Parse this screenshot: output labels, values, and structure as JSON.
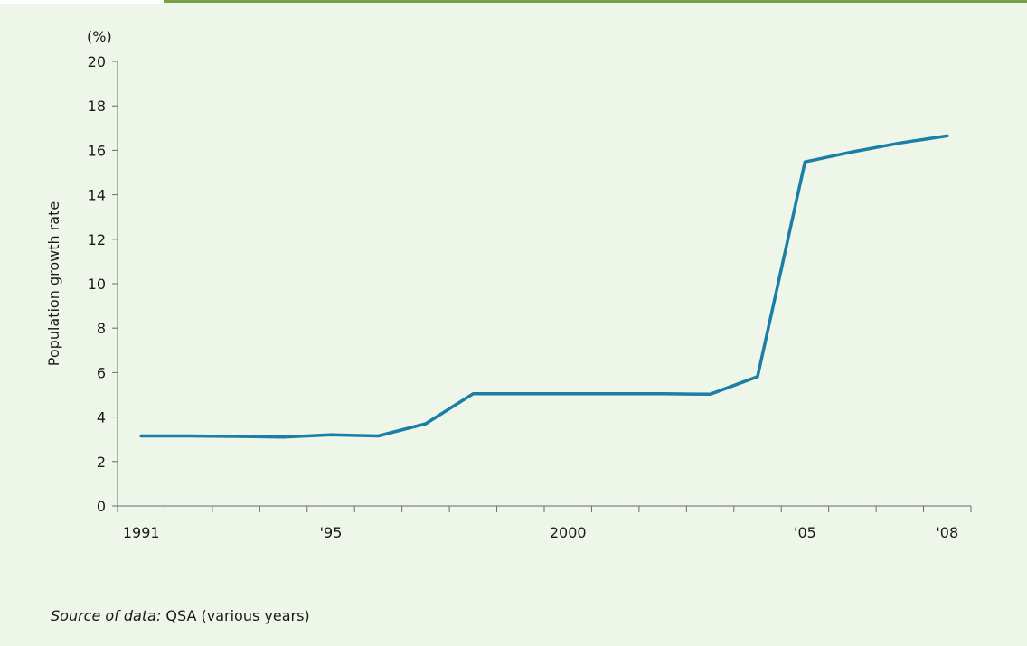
{
  "chart_data": {
    "type": "line",
    "title": "",
    "ylabel": "Population growth rate",
    "yunit": "(%)",
    "xlabel": "",
    "ylim": [
      0,
      20
    ],
    "yticks": [
      0,
      2,
      4,
      6,
      8,
      10,
      12,
      14,
      16,
      18,
      20
    ],
    "x": [
      1991,
      1992,
      1993,
      1994,
      1995,
      1996,
      1997,
      1998,
      1999,
      2000,
      2001,
      2002,
      2003,
      2004,
      2005,
      2006,
      2007,
      2008
    ],
    "xlim": [
      1990.5,
      2008.5
    ],
    "xtick_labels": [
      {
        "year": 1991,
        "label": "1991"
      },
      {
        "year": 1995,
        "label": "'95"
      },
      {
        "year": 2000,
        "label": "2000"
      },
      {
        "year": 2005,
        "label": "'05"
      },
      {
        "year": 2008,
        "label": "'08"
      }
    ],
    "series": [
      {
        "values": [
          3.15,
          3.15,
          3.13,
          3.1,
          3.2,
          3.15,
          3.7,
          5.05,
          5.05,
          5.05,
          5.05,
          5.05,
          5.03,
          5.82,
          15.48,
          15.93,
          16.33,
          16.65
        ],
        "color": "#1b7ea6"
      }
    ],
    "grid": false,
    "legend": "none"
  },
  "source": {
    "label": "Source of data:",
    "text": "QSA (various years)"
  }
}
